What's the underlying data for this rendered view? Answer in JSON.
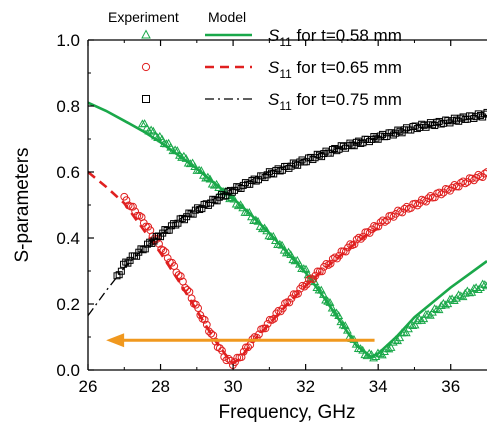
{
  "chart_data": {
    "type": "scatter",
    "xlabel": "Frequency, GHz",
    "ylabel": "S-parameters",
    "xlim": [
      26,
      37
    ],
    "ylim": [
      0.0,
      1.0
    ],
    "xticks": [
      26,
      28,
      30,
      32,
      34,
      36
    ],
    "yticks": [
      0.0,
      0.2,
      0.4,
      0.6,
      0.8,
      1.0
    ],
    "xtick_labels": [
      "26",
      "28",
      "30",
      "32",
      "34",
      "36"
    ],
    "ytick_labels": [
      "0.0",
      "0.2",
      "0.4",
      "0.6",
      "0.8",
      "1.0"
    ],
    "legend": {
      "header_experiment": "Experiment",
      "header_model": "Model",
      "entries": [
        {
          "symbol": "S",
          "sub": "11",
          "text": " for t=0.58 mm"
        },
        {
          "symbol": "S",
          "sub": "11",
          "text": " for t=0.65 mm"
        },
        {
          "symbol": "S",
          "sub": "11",
          "text": " for t=0.75 mm"
        }
      ]
    },
    "series": [
      {
        "color": "#1aa84a",
        "marker": "triangle",
        "line_style": "solid",
        "experiment_range": [
          27.5,
          37.0
        ],
        "experiment": {
          "x": [
            27.5,
            28.0,
            28.5,
            29.0,
            29.5,
            30.0,
            30.5,
            31.0,
            31.5,
            32.0,
            32.5,
            33.0,
            33.3,
            33.6,
            33.9,
            34.2,
            34.6,
            35.0,
            35.5,
            36.0,
            36.5,
            37.0
          ],
          "y": [
            0.745,
            0.7,
            0.655,
            0.61,
            0.56,
            0.515,
            0.465,
            0.41,
            0.355,
            0.3,
            0.225,
            0.145,
            0.09,
            0.05,
            0.04,
            0.055,
            0.1,
            0.14,
            0.175,
            0.21,
            0.235,
            0.26
          ]
        },
        "model": {
          "x": [
            26.0,
            26.5,
            27.0,
            27.5,
            28.0,
            28.5,
            29.0,
            29.5,
            30.0,
            30.5,
            31.0,
            31.5,
            32.0,
            32.5,
            33.0,
            33.4,
            33.8,
            34.0,
            34.5,
            35.0,
            35.5,
            36.0,
            36.5,
            37.0
          ],
          "y": [
            0.81,
            0.785,
            0.755,
            0.725,
            0.69,
            0.65,
            0.61,
            0.565,
            0.52,
            0.47,
            0.415,
            0.355,
            0.295,
            0.22,
            0.14,
            0.075,
            0.04,
            0.05,
            0.1,
            0.16,
            0.205,
            0.25,
            0.29,
            0.33
          ]
        }
      },
      {
        "color": "#e02020",
        "marker": "circle",
        "line_style": "dashed",
        "experiment_range": [
          27.0,
          37.0
        ],
        "experiment": {
          "x": [
            27.0,
            27.5,
            28.0,
            28.5,
            29.0,
            29.3,
            29.6,
            29.8,
            30.0,
            30.2,
            30.5,
            31.0,
            31.5,
            32.0,
            32.5,
            33.0,
            33.5,
            34.0,
            34.5,
            35.0,
            35.5,
            36.0,
            36.5,
            37.0
          ],
          "y": [
            0.52,
            0.455,
            0.375,
            0.29,
            0.19,
            0.13,
            0.07,
            0.035,
            0.02,
            0.04,
            0.085,
            0.145,
            0.205,
            0.26,
            0.31,
            0.355,
            0.4,
            0.44,
            0.475,
            0.5,
            0.525,
            0.55,
            0.575,
            0.595
          ]
        },
        "model": {
          "x": [
            26.0,
            26.5,
            27.0,
            27.5,
            28.0,
            28.5,
            29.0,
            29.5,
            29.9,
            30.0,
            30.2,
            30.5,
            31.0,
            31.5,
            32.0,
            32.5,
            33.0,
            33.5,
            34.0
          ],
          "y": [
            0.6,
            0.555,
            0.505,
            0.43,
            0.355,
            0.27,
            0.18,
            0.09,
            0.03,
            0.02,
            0.035,
            0.08,
            0.14,
            0.2,
            0.255,
            0.305,
            0.35,
            0.395,
            0.43
          ]
        }
      },
      {
        "color": "#000000",
        "marker": "square",
        "line_style": "dashdot",
        "experiment_range": [
          26.8,
          37.0
        ],
        "experiment": {
          "x": [
            26.8,
            27.0,
            27.5,
            28.0,
            28.5,
            29.0,
            29.5,
            30.0,
            30.5,
            31.0,
            31.5,
            32.0,
            32.5,
            33.0,
            33.5,
            34.0,
            34.5,
            35.0,
            35.5,
            36.0,
            36.5,
            37.0
          ],
          "y": [
            0.28,
            0.32,
            0.365,
            0.41,
            0.45,
            0.485,
            0.515,
            0.545,
            0.57,
            0.595,
            0.615,
            0.635,
            0.655,
            0.675,
            0.69,
            0.705,
            0.72,
            0.735,
            0.745,
            0.755,
            0.765,
            0.775
          ]
        },
        "model": {
          "x": [
            26.0,
            26.5,
            27.0,
            27.5,
            28.0,
            28.5,
            29.0,
            29.5,
            30.0,
            30.5,
            31.0,
            31.5,
            32.0,
            32.5,
            33.0,
            33.5,
            34.0,
            34.5,
            35.0,
            35.5,
            36.0,
            36.5,
            37.0
          ],
          "y": [
            0.165,
            0.24,
            0.31,
            0.365,
            0.41,
            0.455,
            0.49,
            0.52,
            0.55,
            0.575,
            0.6,
            0.62,
            0.64,
            0.66,
            0.675,
            0.69,
            0.705,
            0.72,
            0.73,
            0.74,
            0.75,
            0.76,
            0.77
          ]
        }
      }
    ],
    "arrow": {
      "color": "#f0981e",
      "from": [
        33.9,
        0.09
      ],
      "to": [
        26.5,
        0.09
      ]
    }
  }
}
